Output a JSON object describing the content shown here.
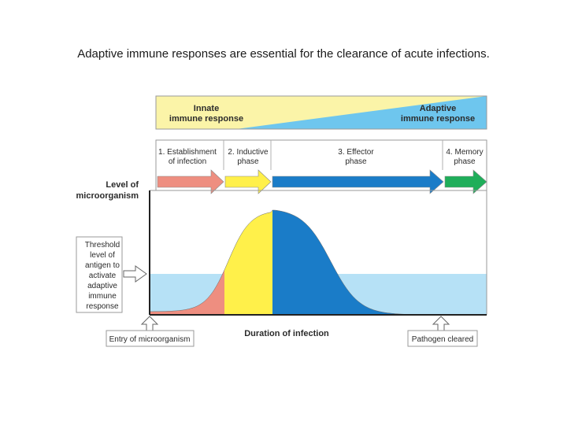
{
  "slide": {
    "title": "Adaptive immune responses are essential for the clearance of acute infections."
  },
  "banner": {
    "innate_line1": "Innate",
    "innate_line2": "immune response",
    "adaptive_line1": "Adaptive",
    "adaptive_line2": "immune response"
  },
  "phases": [
    {
      "line1": "1. Establishment",
      "line2": "of infection",
      "color": "#ee8e80"
    },
    {
      "line1": "2. Inductive",
      "line2": "phase",
      "color": "#fff04a"
    },
    {
      "line1": "3. Effector",
      "line2": "phase",
      "color": "#1a7cc8"
    },
    {
      "line1": "4. Memory",
      "line2": "phase",
      "color": "#1fae5a"
    }
  ],
  "axis": {
    "y_label_line1": "Level of",
    "y_label_line2": "microorganism",
    "x_label": "Duration of infection"
  },
  "threshold": {
    "lines": [
      "Threshold",
      "level of",
      "antigen to",
      "activate",
      "adaptive",
      "immune",
      "response"
    ]
  },
  "markers": {
    "entry": "Entry of microorganism",
    "cleared": "Pathogen cleared"
  },
  "colors": {
    "banner_yellow": "#fbf4a8",
    "banner_blue": "#6ec6ee",
    "threshold_band": "#b6e1f6",
    "curve_red": "#ee8e80",
    "curve_yellow": "#fff04a",
    "curve_blue": "#1a7cc8"
  }
}
